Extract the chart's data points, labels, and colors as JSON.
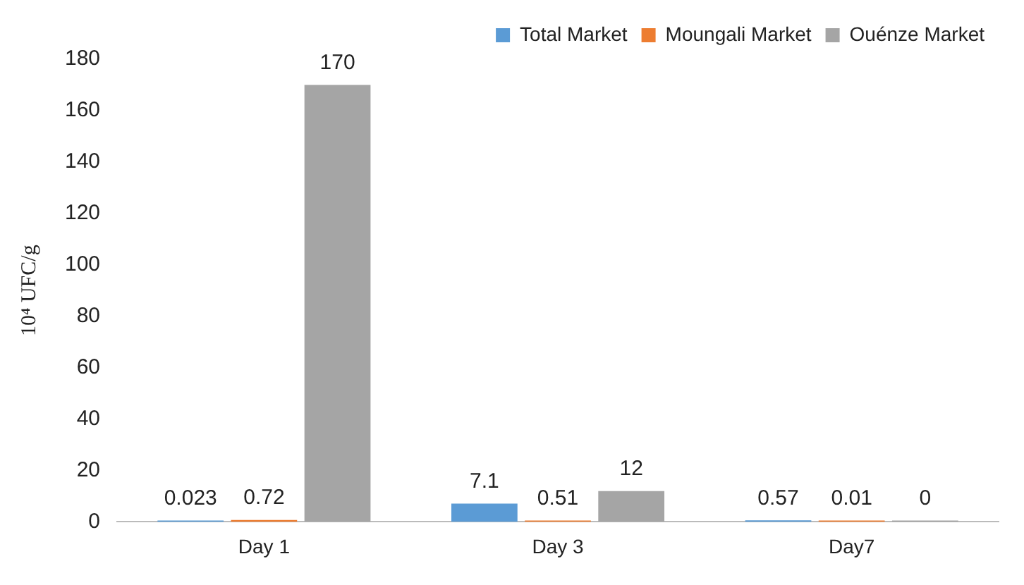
{
  "chart_data": {
    "type": "bar",
    "ylabel": "10⁴ UFC/g",
    "categories": [
      "Day 1",
      "Day 3",
      "Day7"
    ],
    "series": [
      {
        "name": "Total Market",
        "color": "#5b9bd5",
        "values": [
          0.023,
          7.1,
          0.57
        ]
      },
      {
        "name": "Moungali Market",
        "color": "#ed7d31",
        "values": [
          0.72,
          0.51,
          0.01
        ]
      },
      {
        "name": "Ouénze Market",
        "color": "#a5a5a5",
        "values": [
          170,
          12,
          0
        ]
      }
    ],
    "ylim": [
      0,
      180
    ],
    "yticks": [
      0,
      20,
      40,
      60,
      80,
      100,
      120,
      140,
      160,
      180
    ],
    "grid": false,
    "legend": "top",
    "data_labels": true
  }
}
